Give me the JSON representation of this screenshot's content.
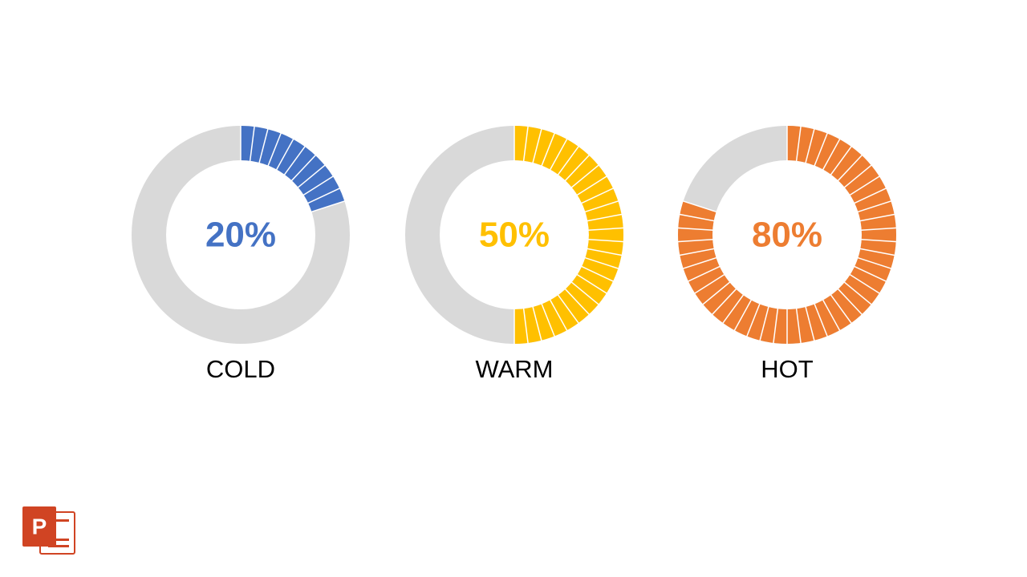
{
  "chart_data": [
    {
      "type": "donut",
      "categories": [
        "COLD"
      ],
      "values": [
        20
      ],
      "value_labels": [
        "20%"
      ],
      "color": "#4472c4"
    },
    {
      "type": "donut",
      "categories": [
        "WARM"
      ],
      "values": [
        50
      ],
      "value_labels": [
        "50%"
      ],
      "color": "#ffc000"
    },
    {
      "type": "donut",
      "categories": [
        "HOT"
      ],
      "values": [
        80
      ],
      "value_labels": [
        "80%"
      ],
      "color": "#ed7d31"
    }
  ]
}
